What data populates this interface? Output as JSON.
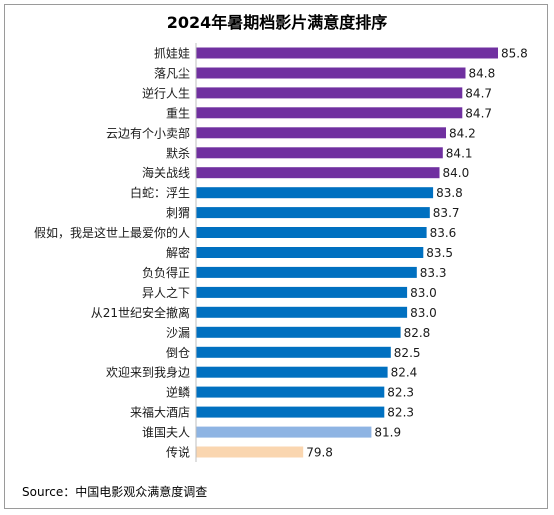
{
  "chart_data": {
    "type": "bar",
    "orientation": "horizontal",
    "title": "2024年暑期档影片满意度排序",
    "source": "Source：中国电影观众满意度调查",
    "categories": [
      "抓娃娃",
      "落凡尘",
      "逆行人生",
      "重生",
      "云边有个小卖部",
      "默杀",
      "海关战线",
      "白蛇：浮生",
      "刺猬",
      "假如，我是这世上最爱你的人",
      "解密",
      "负负得正",
      "异人之下",
      "从21世纪安全撤离",
      "沙漏",
      "倒仓",
      "欢迎来到我身边",
      "逆鳞",
      "来福大酒店",
      "谁国夫人",
      "传说"
    ],
    "values": [
      85.8,
      84.8,
      84.7,
      84.7,
      84.2,
      84.1,
      84.0,
      83.8,
      83.7,
      83.6,
      83.5,
      83.3,
      83.0,
      83.0,
      82.8,
      82.5,
      82.4,
      82.3,
      82.3,
      81.9,
      79.8
    ],
    "value_labels": [
      "85.8",
      "84.8",
      "84.7",
      "84.7",
      "84.2",
      "84.1",
      "84.0",
      "83.8",
      "83.7",
      "83.6",
      "83.5",
      "83.3",
      "83.0",
      "83.0",
      "82.8",
      "82.5",
      "82.4",
      "82.3",
      "82.3",
      "81.9",
      "79.8"
    ],
    "colors": [
      "#7030a0",
      "#7030a0",
      "#7030a0",
      "#7030a0",
      "#7030a0",
      "#7030a0",
      "#7030a0",
      "#0070c0",
      "#0070c0",
      "#0070c0",
      "#0070c0",
      "#0070c0",
      "#0070c0",
      "#0070c0",
      "#0070c0",
      "#0070c0",
      "#0070c0",
      "#0070c0",
      "#0070c0",
      "#8eb4e3",
      "#fad6b0"
    ],
    "xlim": [
      76.5,
      85.8
    ],
    "grid": false,
    "legend": "none"
  }
}
